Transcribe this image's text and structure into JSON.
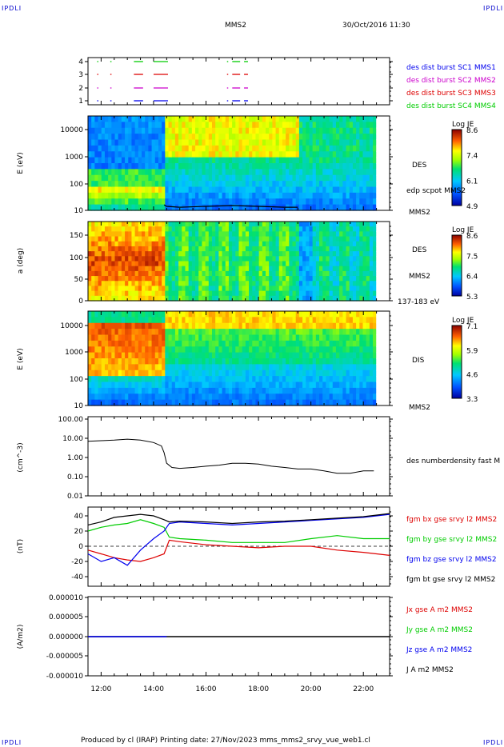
{
  "header": {
    "spacecraft": "MMS2",
    "datetime": "30/Oct/2016 11:30",
    "corner_tl": "IPDLI",
    "corner_tr": "IPDLI",
    "corner_bl": "IPDLI",
    "corner_br": "IPDLI"
  },
  "footer": "Produced by cl (IRAP)   Printing date: 27/Nov/2023   mms_mms2_srvy_vue_web1.cl",
  "colors": {
    "black": "#000000",
    "red": "#dd0000",
    "green": "#00cc00",
    "blue": "#0000ee",
    "magenta": "#cc00cc",
    "spec_low": "#0000a0",
    "spec_high": "#8b0000"
  },
  "chart_data": [
    {
      "type": "line",
      "panel": "burst-flags",
      "ytick_labels": [
        "4",
        "3",
        "2",
        "1"
      ],
      "legend": [
        {
          "label": "des dist burst SC1 MMS1",
          "color": "#0000ee"
        },
        {
          "label": "des dist burst SC2 MMS2",
          "color": "#cc00cc"
        },
        {
          "label": "des dist burst SC3 MMS3",
          "color": "#dd0000"
        },
        {
          "label": "des dist burst SC4 MMS4",
          "color": "#00cc00"
        }
      ],
      "segments": [
        {
          "row": 4,
          "color": "#00cc00",
          "ranges": [
            [
              11.85,
              11.85
            ],
            [
              12.35,
              12.35
            ],
            [
              13.25,
              13.6
            ],
            [
              14.0,
              14.55
            ],
            [
              16.8,
              16.8
            ],
            [
              17.0,
              17.3
            ],
            [
              17.45,
              17.6
            ]
          ]
        },
        {
          "row": 3,
          "color": "#dd0000",
          "ranges": [
            [
              11.85,
              11.85
            ],
            [
              12.35,
              12.35
            ],
            [
              13.25,
              13.6
            ],
            [
              14.0,
              14.55
            ],
            [
              16.8,
              16.8
            ],
            [
              17.0,
              17.3
            ],
            [
              17.45,
              17.6
            ]
          ]
        },
        {
          "row": 2,
          "color": "#cc00cc",
          "ranges": [
            [
              11.85,
              11.85
            ],
            [
              12.35,
              12.35
            ],
            [
              13.25,
              13.6
            ],
            [
              14.0,
              14.55
            ],
            [
              16.8,
              16.8
            ],
            [
              17.0,
              17.3
            ],
            [
              17.45,
              17.6
            ]
          ]
        },
        {
          "row": 1,
          "color": "#0000ee",
          "ranges": [
            [
              11.85,
              11.85
            ],
            [
              12.35,
              12.35
            ],
            [
              13.25,
              13.6
            ],
            [
              14.0,
              14.55
            ],
            [
              16.8,
              16.8
            ],
            [
              17.0,
              17.3
            ],
            [
              17.45,
              17.6
            ]
          ]
        }
      ]
    },
    {
      "type": "heatmap",
      "panel": "des-energy",
      "ylabel": "E (eV)",
      "yscale": "log",
      "ylim": [
        10,
        30000
      ],
      "ytick_labels": [
        "10000",
        "1000",
        "100",
        "10"
      ],
      "label": "DES",
      "sublabel": "MMS2",
      "overlay_label": "edp scpot MMS2",
      "colorbar": {
        "title": "Log JE",
        "ticks": [
          "8.6",
          "7.4",
          "6.1",
          "4.9"
        ]
      },
      "data_end_hour": 22.45,
      "overlay_series": {
        "name": "edp scpot MMS2",
        "x": [
          14.4,
          14.5,
          15.0,
          16.0,
          17.0,
          18.0,
          19.0,
          19.5
        ],
        "y": [
          16,
          14,
          13,
          14,
          15,
          14,
          13,
          13
        ]
      }
    },
    {
      "type": "heatmap",
      "panel": "des-pitch",
      "ylabel": "a (deg)",
      "ylim": [
        0,
        180
      ],
      "ytick_labels": [
        "150",
        "100",
        "50",
        "0"
      ],
      "label": "DES",
      "sublabel": "MMS2",
      "energy_range_label": "137-183 eV",
      "colorbar": {
        "title": "Log JE",
        "ticks": [
          "8.6",
          "7.5",
          "6.4",
          "5.3"
        ]
      }
    },
    {
      "type": "heatmap",
      "panel": "dis-energy",
      "ylabel": "E (eV)",
      "yscale": "log",
      "ylim": [
        10,
        30000
      ],
      "ytick_labels": [
        "10000",
        "1000",
        "100",
        "10"
      ],
      "label": "DIS",
      "sublabel": "MMS2",
      "colorbar": {
        "title": "Log JE",
        "ticks": [
          "7.1",
          "5.9",
          "4.6",
          "3.3"
        ]
      }
    },
    {
      "type": "line",
      "panel": "density",
      "ylabel": "(cm^-3)",
      "yscale": "log",
      "ylim": [
        0.01,
        100
      ],
      "ytick_labels": [
        "100.00",
        "10.00",
        "1.00",
        "0.10",
        "0.01"
      ],
      "legend": [
        {
          "label": "des numberdensity fast M",
          "color": "#000000"
        }
      ],
      "series": [
        {
          "name": "des numberdensity fast M",
          "color": "#000000",
          "x": [
            11.5,
            12.0,
            12.5,
            13.0,
            13.5,
            14.0,
            14.3,
            14.4,
            14.5,
            14.7,
            15.0,
            15.5,
            16.0,
            16.5,
            17.0,
            17.5,
            18.0,
            18.5,
            19.0,
            19.5,
            20.0,
            20.5,
            21.0,
            21.5,
            22.0,
            22.4
          ],
          "y": [
            7,
            7.5,
            8,
            9,
            8,
            6,
            4,
            1.8,
            0.5,
            0.3,
            0.27,
            0.3,
            0.35,
            0.4,
            0.5,
            0.5,
            0.45,
            0.35,
            0.3,
            0.25,
            0.25,
            0.2,
            0.15,
            0.15,
            0.2,
            0.2
          ]
        }
      ]
    },
    {
      "type": "line",
      "panel": "magnetic-field",
      "ylabel": "(nT)",
      "ylim": [
        -45,
        45
      ],
      "ytick_labels": [
        "40",
        "20",
        "0",
        "-20",
        "-40"
      ],
      "legend": [
        {
          "label": "fgm bx gse srvy l2 MMS2",
          "color": "#dd0000"
        },
        {
          "label": "fgm by gse srvy l2 MMS2",
          "color": "#00cc00"
        },
        {
          "label": "fgm bz gse srvy l2 MMS2",
          "color": "#0000ee"
        },
        {
          "label": "fgm bt gse srvy l2 MMS2",
          "color": "#000000"
        }
      ],
      "series": [
        {
          "name": "fgm bx gse srvy l2 MMS2",
          "color": "#dd0000",
          "x": [
            11.5,
            12.0,
            12.5,
            13.0,
            13.5,
            14.0,
            14.4,
            14.6,
            15.0,
            16.0,
            17.0,
            18.0,
            19.0,
            20.0,
            21.0,
            22.0,
            23.0
          ],
          "y": [
            -5,
            -10,
            -15,
            -18,
            -20,
            -15,
            -10,
            8,
            6,
            2,
            0,
            -2,
            0,
            0,
            -5,
            -8,
            -12
          ]
        },
        {
          "name": "fgm by gse srvy l2 MMS2",
          "color": "#00cc00",
          "x": [
            11.5,
            12.0,
            12.5,
            13.0,
            13.5,
            14.0,
            14.4,
            14.6,
            15.0,
            16.0,
            17.0,
            18.0,
            19.0,
            20.0,
            21.0,
            22.0,
            23.0
          ],
          "y": [
            20,
            25,
            28,
            30,
            35,
            30,
            25,
            12,
            10,
            8,
            5,
            5,
            5,
            10,
            14,
            10,
            10
          ]
        },
        {
          "name": "fgm bz gse srvy l2 MMS2",
          "color": "#0000ee",
          "x": [
            11.5,
            12.0,
            12.5,
            13.0,
            13.5,
            14.0,
            14.4,
            14.6,
            15.0,
            16.0,
            17.0,
            18.0,
            19.0,
            20.0,
            21.0,
            22.0,
            23.0
          ],
          "y": [
            -10,
            -20,
            -15,
            -25,
            -5,
            10,
            20,
            30,
            32,
            30,
            28,
            30,
            32,
            34,
            36,
            38,
            42
          ]
        },
        {
          "name": "fgm bt gse srvy l2 MMS2",
          "color": "#000000",
          "x": [
            11.5,
            12.0,
            12.5,
            13.0,
            13.5,
            14.0,
            14.4,
            14.6,
            15.0,
            16.0,
            17.0,
            18.0,
            19.0,
            20.0,
            21.0,
            22.0,
            23.0
          ],
          "y": [
            28,
            32,
            38,
            40,
            42,
            40,
            35,
            32,
            33,
            32,
            30,
            32,
            33,
            35,
            37,
            39,
            43
          ]
        }
      ]
    },
    {
      "type": "line",
      "panel": "current-density",
      "ylabel": "(A/m2)",
      "ylim": [
        -1e-05,
        1e-05
      ],
      "ytick_labels": [
        "0.000010",
        "0.000005",
        "0.000000",
        "-0.000005",
        "-0.000010"
      ],
      "xtick_labels": [
        "12:00",
        "14:00",
        "16:00",
        "18:00",
        "20:00",
        "22:00"
      ],
      "legend": [
        {
          "label": "Jx gse A m2 MMS2",
          "color": "#dd0000"
        },
        {
          "label": "Jy gse A m2 MMS2",
          "color": "#00cc00"
        },
        {
          "label": "Jz gse A m2 MMS2",
          "color": "#0000ee"
        },
        {
          "label": "J A m2 MMS2",
          "color": "#000000"
        }
      ],
      "series": [
        {
          "name": "J A m2 MMS2",
          "color": "#000000",
          "x": [
            11.5,
            23.0
          ],
          "y": [
            0,
            0
          ]
        },
        {
          "name": "Jz gse A m2 MMS2",
          "color": "#0000ee",
          "x": [
            11.5,
            14.5
          ],
          "y": [
            0,
            0
          ]
        }
      ]
    }
  ]
}
